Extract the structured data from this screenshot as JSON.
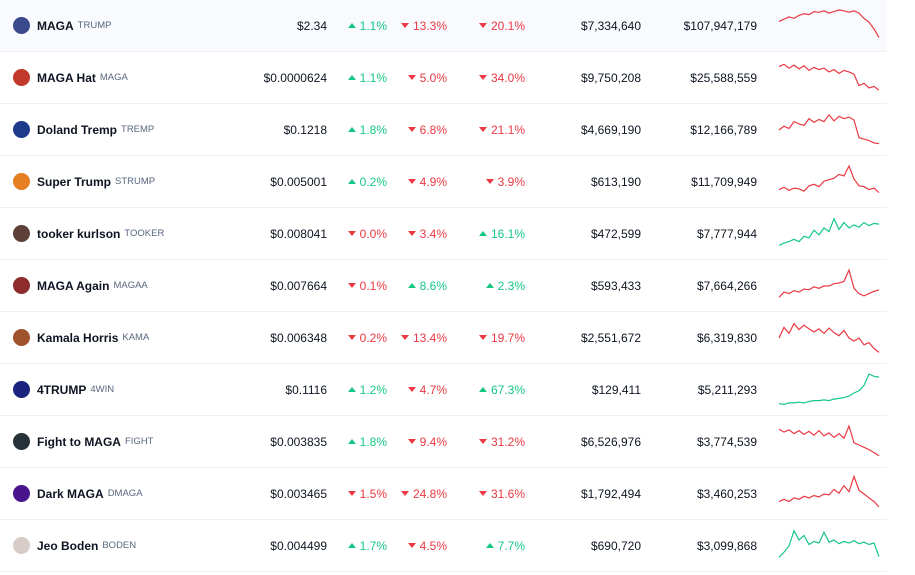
{
  "colors": {
    "up": "#16c784",
    "down": "#ea3943"
  },
  "rows": [
    {
      "name": "MAGA",
      "symbol": "TRUMP",
      "icon": "trump-portrait-icon",
      "icon_color": "#3b4a8c",
      "price": "$2.34",
      "h1": {
        "text": "1.1%",
        "dir": "up"
      },
      "h24": {
        "text": "13.3%",
        "dir": "down"
      },
      "d7": {
        "text": "20.1%",
        "dir": "down"
      },
      "volume": "$7,334,640",
      "mcap": "$107,947,179",
      "trend": "down",
      "spark": [
        0.62,
        0.68,
        0.74,
        0.7,
        0.78,
        0.82,
        0.8,
        0.88,
        0.86,
        0.9,
        0.84,
        0.88,
        0.92,
        0.9,
        0.86,
        0.9,
        0.84,
        0.7,
        0.6,
        0.42,
        0.2
      ]
    },
    {
      "name": "MAGA Hat",
      "symbol": "MAGA",
      "icon": "red-hat-icon",
      "icon_color": "#c0392b",
      "price": "$0.0000624",
      "h1": {
        "text": "1.1%",
        "dir": "up"
      },
      "h24": {
        "text": "5.0%",
        "dir": "down"
      },
      "d7": {
        "text": "34.0%",
        "dir": "down"
      },
      "volume": "$9,750,208",
      "mcap": "$25,588,559",
      "trend": "down",
      "spark": [
        0.8,
        0.86,
        0.76,
        0.84,
        0.74,
        0.82,
        0.7,
        0.78,
        0.72,
        0.76,
        0.66,
        0.72,
        0.62,
        0.7,
        0.66,
        0.6,
        0.3,
        0.36,
        0.24,
        0.28,
        0.18
      ]
    },
    {
      "name": "Doland Tremp",
      "symbol": "TREMP",
      "icon": "tremp-portrait-icon",
      "icon_color": "#1e3a8a",
      "price": "$0.1218",
      "h1": {
        "text": "1.8%",
        "dir": "up"
      },
      "h24": {
        "text": "6.8%",
        "dir": "down"
      },
      "d7": {
        "text": "21.1%",
        "dir": "down"
      },
      "volume": "$4,669,190",
      "mcap": "$12,166,789",
      "trend": "down",
      "spark": [
        0.5,
        0.6,
        0.54,
        0.72,
        0.66,
        0.62,
        0.8,
        0.7,
        0.78,
        0.72,
        0.9,
        0.74,
        0.86,
        0.8,
        0.84,
        0.76,
        0.3,
        0.26,
        0.22,
        0.16,
        0.14
      ]
    },
    {
      "name": "Super Trump",
      "symbol": "STRUMP",
      "icon": "super-trump-icon",
      "icon_color": "#e67e22",
      "price": "$0.005001",
      "h1": {
        "text": "0.2%",
        "dir": "up"
      },
      "h24": {
        "text": "4.9%",
        "dir": "down"
      },
      "d7": {
        "text": "3.9%",
        "dir": "down"
      },
      "volume": "$613,190",
      "mcap": "$11,709,949",
      "trend": "down",
      "spark": [
        0.3,
        0.36,
        0.28,
        0.34,
        0.32,
        0.26,
        0.4,
        0.44,
        0.38,
        0.52,
        0.56,
        0.6,
        0.7,
        0.66,
        0.92,
        0.58,
        0.4,
        0.38,
        0.3,
        0.34,
        0.22
      ]
    },
    {
      "name": "tooker kurlson",
      "symbol": "TOOKER",
      "icon": "tooker-portrait-icon",
      "icon_color": "#5d4037",
      "price": "$0.008041",
      "h1": {
        "text": "0.0%",
        "dir": "down"
      },
      "h24": {
        "text": "3.4%",
        "dir": "down"
      },
      "d7": {
        "text": "16.1%",
        "dir": "up"
      },
      "volume": "$472,599",
      "mcap": "$7,777,944",
      "trend": "up",
      "spark": [
        0.2,
        0.26,
        0.3,
        0.36,
        0.3,
        0.44,
        0.4,
        0.6,
        0.48,
        0.66,
        0.56,
        0.9,
        0.62,
        0.8,
        0.66,
        0.74,
        0.68,
        0.8,
        0.72,
        0.78,
        0.76
      ]
    },
    {
      "name": "MAGA Again",
      "symbol": "MAGAA",
      "icon": "maga-again-icon",
      "icon_color": "#8d2c2c",
      "price": "$0.007664",
      "h1": {
        "text": "0.1%",
        "dir": "down"
      },
      "h24": {
        "text": "8.6%",
        "dir": "up"
      },
      "d7": {
        "text": "2.3%",
        "dir": "up"
      },
      "volume": "$593,433",
      "mcap": "$7,664,266",
      "trend": "down",
      "spark": [
        0.2,
        0.34,
        0.3,
        0.38,
        0.34,
        0.42,
        0.4,
        0.48,
        0.44,
        0.5,
        0.5,
        0.56,
        0.58,
        0.62,
        0.92,
        0.44,
        0.3,
        0.24,
        0.3,
        0.36,
        0.4
      ]
    },
    {
      "name": "Kamala Horris",
      "symbol": "KAMA",
      "icon": "kamala-portrait-icon",
      "icon_color": "#a0522d",
      "price": "$0.006348",
      "h1": {
        "text": "0.2%",
        "dir": "down"
      },
      "h24": {
        "text": "13.4%",
        "dir": "down"
      },
      "d7": {
        "text": "19.7%",
        "dir": "down"
      },
      "volume": "$2,551,672",
      "mcap": "$6,319,830",
      "trend": "down",
      "spark": [
        0.5,
        0.78,
        0.62,
        0.88,
        0.72,
        0.84,
        0.74,
        0.66,
        0.74,
        0.62,
        0.76,
        0.64,
        0.56,
        0.7,
        0.5,
        0.42,
        0.5,
        0.32,
        0.38,
        0.22,
        0.12
      ]
    },
    {
      "name": "4TRUMP",
      "symbol": "4WIN",
      "icon": "4trump-icon",
      "icon_color": "#1a237e",
      "price": "$0.1116",
      "h1": {
        "text": "1.2%",
        "dir": "up"
      },
      "h24": {
        "text": "4.7%",
        "dir": "down"
      },
      "d7": {
        "text": "67.3%",
        "dir": "up"
      },
      "volume": "$129,411",
      "mcap": "$5,211,293",
      "trend": "up",
      "spark": [
        0.14,
        0.12,
        0.16,
        0.16,
        0.18,
        0.16,
        0.2,
        0.22,
        0.22,
        0.24,
        0.22,
        0.26,
        0.28,
        0.3,
        0.34,
        0.42,
        0.48,
        0.62,
        0.92,
        0.86,
        0.84
      ]
    },
    {
      "name": "Fight to MAGA",
      "symbol": "FIGHT",
      "icon": "fight-maga-icon",
      "icon_color": "#263238",
      "price": "$0.003835",
      "h1": {
        "text": "1.8%",
        "dir": "up"
      },
      "h24": {
        "text": "9.4%",
        "dir": "down"
      },
      "d7": {
        "text": "31.2%",
        "dir": "down"
      },
      "volume": "$6,526,976",
      "mcap": "$3,774,539",
      "trend": "down",
      "spark": [
        0.84,
        0.76,
        0.82,
        0.72,
        0.8,
        0.7,
        0.78,
        0.68,
        0.8,
        0.66,
        0.74,
        0.62,
        0.72,
        0.6,
        0.92,
        0.48,
        0.42,
        0.36,
        0.3,
        0.22,
        0.14
      ]
    },
    {
      "name": "Dark MAGA",
      "symbol": "DMAGA",
      "icon": "dark-maga-icon",
      "icon_color": "#4a148c",
      "price": "$0.003465",
      "h1": {
        "text": "1.5%",
        "dir": "down"
      },
      "h24": {
        "text": "24.8%",
        "dir": "down"
      },
      "d7": {
        "text": "31.6%",
        "dir": "down"
      },
      "volume": "$1,792,494",
      "mcap": "$3,460,253",
      "trend": "down",
      "spark": [
        0.3,
        0.36,
        0.3,
        0.4,
        0.36,
        0.44,
        0.4,
        0.46,
        0.42,
        0.5,
        0.48,
        0.62,
        0.52,
        0.72,
        0.56,
        0.96,
        0.6,
        0.5,
        0.4,
        0.3,
        0.16
      ]
    },
    {
      "name": "Jeo Boden",
      "symbol": "BODEN",
      "icon": "boden-portrait-icon",
      "icon_color": "#d7ccc8",
      "price": "$0.004499",
      "h1": {
        "text": "1.7%",
        "dir": "up"
      },
      "h24": {
        "text": "4.5%",
        "dir": "down"
      },
      "d7": {
        "text": "7.7%",
        "dir": "up"
      },
      "volume": "$690,720",
      "mcap": "$3,099,868",
      "trend": "up",
      "spark": [
        0.2,
        0.34,
        0.5,
        0.9,
        0.66,
        0.78,
        0.54,
        0.62,
        0.58,
        0.86,
        0.6,
        0.66,
        0.56,
        0.62,
        0.58,
        0.64,
        0.56,
        0.6,
        0.54,
        0.58,
        0.22
      ]
    }
  ]
}
